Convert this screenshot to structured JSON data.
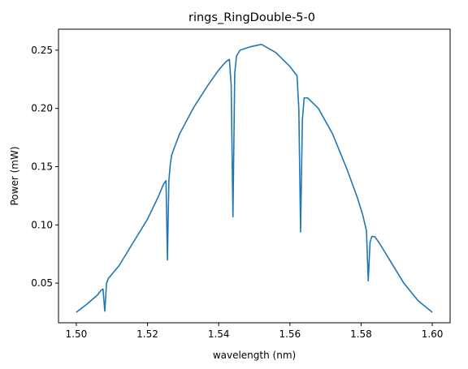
{
  "chart_data": {
    "type": "line",
    "title": "rings_RingDouble-5-0",
    "xlabel": "wavelength (nm)",
    "ylabel": "Power (mW)",
    "xlim": [
      1.495,
      1.605
    ],
    "ylim": [
      0.016,
      0.268
    ],
    "xticks": [
      1.5,
      1.52,
      1.54,
      1.56,
      1.58,
      1.6
    ],
    "xtick_labels": [
      "1.50",
      "1.52",
      "1.54",
      "1.56",
      "1.58",
      "1.60"
    ],
    "yticks": [
      0.05,
      0.1,
      0.15,
      0.2,
      0.25
    ],
    "ytick_labels": [
      "0.05",
      "0.10",
      "0.15",
      "0.20",
      "0.25"
    ],
    "grid": false,
    "series": [
      {
        "color": "#1f77b4",
        "x": [
          1.5,
          1.503,
          1.506,
          1.507,
          1.5075,
          1.508,
          1.5085,
          1.509,
          1.512,
          1.516,
          1.52,
          1.523,
          1.5245,
          1.5252,
          1.5256,
          1.526,
          1.5264,
          1.5268,
          1.5275,
          1.529,
          1.533,
          1.537,
          1.54,
          1.542,
          1.543,
          1.5435,
          1.544,
          1.5445,
          1.545,
          1.546,
          1.549,
          1.552,
          1.556,
          1.56,
          1.562,
          1.5625,
          1.563,
          1.5635,
          1.564,
          1.565,
          1.568,
          1.572,
          1.576,
          1.579,
          1.5805,
          1.5815,
          1.582,
          1.5825,
          1.583,
          1.5838,
          1.585,
          1.588,
          1.592,
          1.596,
          1.6
        ],
        "y": [
          0.025,
          0.032,
          0.04,
          0.044,
          0.045,
          0.026,
          0.05,
          0.054,
          0.065,
          0.085,
          0.105,
          0.124,
          0.135,
          0.138,
          0.07,
          0.138,
          0.152,
          0.16,
          0.166,
          0.178,
          0.201,
          0.22,
          0.233,
          0.24,
          0.242,
          0.22,
          0.107,
          0.23,
          0.245,
          0.25,
          0.253,
          0.255,
          0.248,
          0.236,
          0.228,
          0.2,
          0.094,
          0.19,
          0.209,
          0.209,
          0.2,
          0.178,
          0.148,
          0.123,
          0.108,
          0.095,
          0.052,
          0.085,
          0.09,
          0.09,
          0.085,
          0.07,
          0.05,
          0.035,
          0.025
        ]
      }
    ]
  }
}
